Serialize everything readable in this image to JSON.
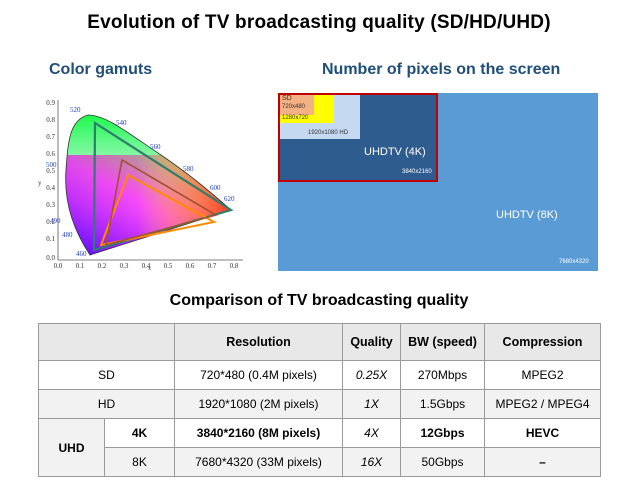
{
  "title": "Evolution of TV broadcasting  quality (SD/HD/UHD)",
  "gamut": {
    "subtitle": "Color gamuts",
    "y_ticks": [
      "0.9",
      "0.8",
      "0.7",
      "0.6",
      "0.5",
      "0.4",
      "0.3",
      "0.2",
      "0.1",
      "0.0"
    ],
    "x_ticks": [
      "0.0",
      "0.1",
      "0.2",
      "0.3",
      "0.4",
      "0.5",
      "0.6",
      "0.7",
      "0.8"
    ],
    "y_axis_letter": "y",
    "x_axis_letter": "x",
    "wavelengths": [
      "520",
      "540",
      "560",
      "580",
      "500",
      "600",
      "620",
      "490",
      "480",
      "460"
    ],
    "colors": {
      "rec2020": "#2e7d6e",
      "rec709": "#ff8a00",
      "dci": "#a0522d"
    }
  },
  "pixels": {
    "subtitle": "Number of pixels on the screen",
    "sd": {
      "label": "SD",
      "res": "720x480"
    },
    "hd": {
      "res": "1280x720"
    },
    "fhd": {
      "res": "1920x1080  HD"
    },
    "uhd4k": {
      "label": "UHDTV (4K)",
      "res": "3840x2160"
    },
    "uhd8k": {
      "label": "UHDTV (8K)",
      "res": "7680x4320"
    },
    "colors": {
      "bg8k": "#5b9bd5",
      "uhd4k": "#2f5c8f",
      "fhd": "#c5d9f1",
      "hd": "#ffff00",
      "sd": "#f4b183",
      "border": "#c00000"
    }
  },
  "comparison": {
    "title": "Comparison of TV broadcasting quality",
    "headers": [
      "Resolution",
      "Quality",
      "BW (speed)",
      "Compression"
    ],
    "sd": {
      "label": "SD",
      "resolution": "720*480 (0.4M pixels)",
      "quality": "0.25X",
      "bw": "270Mbps",
      "compression": "MPEG2"
    },
    "hd": {
      "label": "HD",
      "resolution": "1920*1080 (2M pixels)",
      "quality": "1X",
      "bw": "1.5Gbps",
      "compression": "MPEG2 / MPEG4"
    },
    "uhd_label": "UHD",
    "k4": {
      "label": "4K",
      "resolution": "3840*2160 (8M pixels)",
      "quality": "4X",
      "bw": "12Gbps",
      "compression": "HEVC"
    },
    "k8": {
      "label": "8K",
      "resolution": "7680*4320 (33M pixels)",
      "quality": "16X",
      "bw": "50Gbps",
      "compression": "–"
    }
  }
}
